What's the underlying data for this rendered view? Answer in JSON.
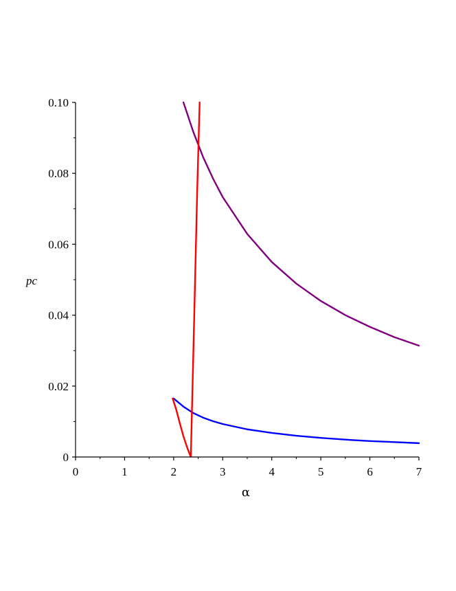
{
  "chart_data": {
    "type": "line",
    "xlabel": "α",
    "ylabel": "pc",
    "xlim": [
      0,
      7
    ],
    "ylim": [
      0,
      0.1
    ],
    "x_ticks": [
      0,
      1,
      2,
      3,
      4,
      5,
      6,
      7
    ],
    "x_tick_labels": [
      "0",
      "1",
      "2",
      "3",
      "4",
      "5",
      "6",
      "7"
    ],
    "y_ticks": [
      0,
      0.02,
      0.04,
      0.06,
      0.08,
      0.1
    ],
    "y_tick_labels": [
      "0",
      "0.02",
      "0.04",
      "0.06",
      "0.08",
      "0.10"
    ],
    "grid": false,
    "series": [
      {
        "color": "#800080",
        "x": [
          2.2,
          2.4,
          2.6,
          2.8,
          3.0,
          3.5,
          4.0,
          4.5,
          5.0,
          5.5,
          6.0,
          6.5,
          7.0
        ],
        "y": [
          0.1,
          0.0917,
          0.0846,
          0.0786,
          0.0733,
          0.0629,
          0.055,
          0.0489,
          0.044,
          0.04,
          0.0367,
          0.0338,
          0.0314
        ]
      },
      {
        "color": "#0000ff",
        "x": [
          2.0,
          2.2,
          2.4,
          2.6,
          2.8,
          3.0,
          3.5,
          4.0,
          4.5,
          5.0,
          5.5,
          6.0,
          6.5,
          7.0
        ],
        "y": [
          0.0165,
          0.0142,
          0.0124,
          0.0111,
          0.0101,
          0.0093,
          0.0078,
          0.0068,
          0.006,
          0.0054,
          0.0049,
          0.0045,
          0.0042,
          0.0039
        ]
      },
      {
        "color": "#ff0000",
        "x": [
          1.98,
          2.05,
          2.12,
          2.2,
          2.28,
          2.35,
          2.42,
          2.48,
          2.53
        ],
        "y": [
          0.0165,
          0.0135,
          0.0098,
          0.0058,
          0.0025,
          0.0,
          0.04,
          0.075,
          0.1
        ]
      }
    ]
  }
}
